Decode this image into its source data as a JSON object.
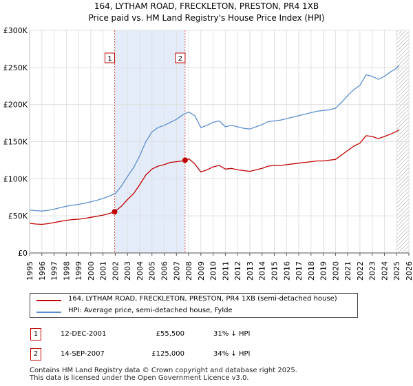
{
  "chart_data": {
    "type": "line",
    "title": "164, LYTHAM ROAD, FRECKLETON, PRESTON, PR4 1XB",
    "subtitle": "Price paid vs. HM Land Registry's House Price Index (HPI)",
    "xlim": [
      1995,
      2026
    ],
    "ylim": [
      0,
      300000
    ],
    "y_ticks": [
      {
        "value": 0,
        "label": "£0"
      },
      {
        "value": 50000,
        "label": "£50K"
      },
      {
        "value": 100000,
        "label": "£100K"
      },
      {
        "value": 150000,
        "label": "£150K"
      },
      {
        "value": 200000,
        "label": "£200K"
      },
      {
        "value": 250000,
        "label": "£250K"
      },
      {
        "value": 300000,
        "label": "£300K"
      }
    ],
    "x_ticks": [
      "1995",
      "1996",
      "1997",
      "1998",
      "1999",
      "2000",
      "2001",
      "2002",
      "2003",
      "2004",
      "2005",
      "2006",
      "2007",
      "2008",
      "2009",
      "2010",
      "2011",
      "2012",
      "2013",
      "2014",
      "2015",
      "2016",
      "2017",
      "2018",
      "2019",
      "2020",
      "2021",
      "2022",
      "2023",
      "2024",
      "2025",
      "2026"
    ],
    "grid": true,
    "shaded_range": [
      2001.95,
      2007.71
    ],
    "hatched_from": 2025.0,
    "series": [
      {
        "name": "164, LYTHAM ROAD, FRECKLETON, PRESTON, PR4 1XB (semi-detached house)",
        "color": "#c00000",
        "points": [
          [
            1995.0,
            40000
          ],
          [
            1995.5,
            39000
          ],
          [
            1996.0,
            38500
          ],
          [
            1996.5,
            39500
          ],
          [
            1997.0,
            41000
          ],
          [
            1997.5,
            42500
          ],
          [
            1998.0,
            44000
          ],
          [
            1998.5,
            45000
          ],
          [
            1999.0,
            45500
          ],
          [
            1999.5,
            46500
          ],
          [
            2000.0,
            48000
          ],
          [
            2000.5,
            49500
          ],
          [
            2001.0,
            51000
          ],
          [
            2001.5,
            53000
          ],
          [
            2001.95,
            55500
          ],
          [
            2002.5,
            63000
          ],
          [
            2003.0,
            72000
          ],
          [
            2003.5,
            80000
          ],
          [
            2004.0,
            92000
          ],
          [
            2004.5,
            105000
          ],
          [
            2005.0,
            113000
          ],
          [
            2005.5,
            117000
          ],
          [
            2006.0,
            119000
          ],
          [
            2006.5,
            122000
          ],
          [
            2007.0,
            123000
          ],
          [
            2007.5,
            124000
          ],
          [
            2007.71,
            125000
          ],
          [
            2008.0,
            127000
          ],
          [
            2008.5,
            120000
          ],
          [
            2009.0,
            109000
          ],
          [
            2009.5,
            112000
          ],
          [
            2010.0,
            116000
          ],
          [
            2010.5,
            118000
          ],
          [
            2011.0,
            113000
          ],
          [
            2011.5,
            114000
          ],
          [
            2012.0,
            112000
          ],
          [
            2012.5,
            111000
          ],
          [
            2013.0,
            110000
          ],
          [
            2013.5,
            112000
          ],
          [
            2014.0,
            114000
          ],
          [
            2014.5,
            117000
          ],
          [
            2015.0,
            118000
          ],
          [
            2015.5,
            118000
          ],
          [
            2016.0,
            119000
          ],
          [
            2016.5,
            120000
          ],
          [
            2017.0,
            121000
          ],
          [
            2017.5,
            122000
          ],
          [
            2018.0,
            123000
          ],
          [
            2018.5,
            124000
          ],
          [
            2019.0,
            124000
          ],
          [
            2019.5,
            125000
          ],
          [
            2020.0,
            126000
          ],
          [
            2020.5,
            132000
          ],
          [
            2021.0,
            138000
          ],
          [
            2021.5,
            144000
          ],
          [
            2022.0,
            148000
          ],
          [
            2022.5,
            158000
          ],
          [
            2023.0,
            157000
          ],
          [
            2023.5,
            154000
          ],
          [
            2024.0,
            157000
          ],
          [
            2024.5,
            160000
          ],
          [
            2025.0,
            164000
          ],
          [
            2025.2,
            166000
          ]
        ]
      },
      {
        "name": "HPI: Average price, semi-detached house, Fylde",
        "color": "#5b8fd0",
        "points": [
          [
            1995.0,
            58000
          ],
          [
            1995.5,
            57000
          ],
          [
            1996.0,
            56500
          ],
          [
            1996.5,
            57500
          ],
          [
            1997.0,
            59000
          ],
          [
            1997.5,
            61000
          ],
          [
            1998.0,
            63000
          ],
          [
            1998.5,
            64500
          ],
          [
            1999.0,
            65500
          ],
          [
            1999.5,
            67000
          ],
          [
            2000.0,
            69000
          ],
          [
            2000.5,
            71000
          ],
          [
            2001.0,
            73500
          ],
          [
            2001.5,
            76500
          ],
          [
            2002.0,
            80000
          ],
          [
            2002.5,
            90000
          ],
          [
            2003.0,
            103000
          ],
          [
            2003.5,
            115000
          ],
          [
            2004.0,
            131000
          ],
          [
            2004.5,
            150000
          ],
          [
            2005.0,
            163000
          ],
          [
            2005.5,
            169000
          ],
          [
            2006.0,
            172000
          ],
          [
            2006.5,
            176000
          ],
          [
            2007.0,
            180000
          ],
          [
            2007.5,
            186000
          ],
          [
            2008.0,
            190000
          ],
          [
            2008.5,
            185000
          ],
          [
            2009.0,
            169000
          ],
          [
            2009.5,
            172000
          ],
          [
            2010.0,
            176000
          ],
          [
            2010.5,
            178000
          ],
          [
            2011.0,
            170000
          ],
          [
            2011.5,
            172000
          ],
          [
            2012.0,
            170000
          ],
          [
            2012.5,
            168000
          ],
          [
            2013.0,
            167000
          ],
          [
            2013.5,
            170000
          ],
          [
            2014.0,
            173000
          ],
          [
            2014.5,
            177000
          ],
          [
            2015.0,
            178000
          ],
          [
            2015.5,
            179000
          ],
          [
            2016.0,
            181000
          ],
          [
            2016.5,
            183000
          ],
          [
            2017.0,
            185000
          ],
          [
            2017.5,
            187000
          ],
          [
            2018.0,
            189000
          ],
          [
            2018.5,
            191000
          ],
          [
            2019.0,
            192000
          ],
          [
            2019.5,
            193000
          ],
          [
            2020.0,
            195000
          ],
          [
            2020.5,
            203000
          ],
          [
            2021.0,
            212000
          ],
          [
            2021.5,
            220000
          ],
          [
            2022.0,
            226000
          ],
          [
            2022.5,
            240000
          ],
          [
            2023.0,
            238000
          ],
          [
            2023.5,
            234000
          ],
          [
            2024.0,
            238000
          ],
          [
            2024.5,
            244000
          ],
          [
            2025.0,
            249000
          ],
          [
            2025.2,
            253000
          ]
        ]
      }
    ],
    "markers": [
      {
        "label": "1",
        "x": 2001.95,
        "y": 55500
      },
      {
        "label": "2",
        "x": 2007.71,
        "y": 125000
      }
    ]
  },
  "legend": {
    "red_label": "164, LYTHAM ROAD, FRECKLETON, PRESTON, PR4 1XB (semi-detached house)",
    "blue_label": "HPI: Average price, semi-detached house, Fylde"
  },
  "transactions": [
    {
      "num": "1",
      "date": "12-DEC-2001",
      "price": "£55,500",
      "hpi": "31% ↓ HPI"
    },
    {
      "num": "2",
      "date": "14-SEP-2007",
      "price": "£125,000",
      "hpi": "34% ↓ HPI"
    }
  ],
  "footer": {
    "line1": "Contains HM Land Registry data © Crown copyright and database right 2025.",
    "line2": "This data is licensed under the Open Government Licence v3.0."
  }
}
